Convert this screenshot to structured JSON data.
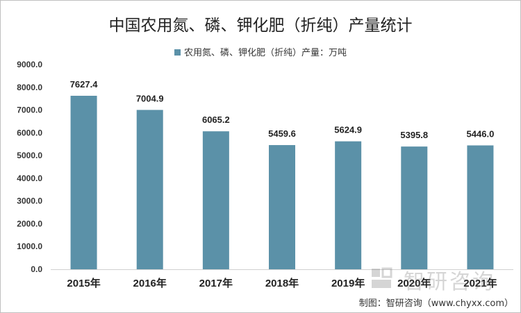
{
  "chart_data": {
    "type": "bar",
    "title": "中国农用氮、磷、钾化肥（折纯）产量统计",
    "categories": [
      "2015年",
      "2016年",
      "2017年",
      "2018年",
      "2019年",
      "2020年",
      "2021年"
    ],
    "series": [
      {
        "name": "农用氮、磷、钾化肥（折纯）产量：万吨",
        "values": [
          7627.4,
          7004.9,
          6065.2,
          5459.6,
          5624.9,
          5395.8,
          5446.0
        ],
        "labels": [
          "7627.4",
          "7004.9",
          "6065.2",
          "5459.6",
          "5624.9",
          "5395.8",
          "5446.0"
        ],
        "color": "#5b91a8"
      }
    ],
    "yticks": [
      "0.0",
      "1000.0",
      "2000.0",
      "3000.0",
      "4000.0",
      "5000.0",
      "6000.0",
      "7000.0",
      "8000.0",
      "9000.0"
    ],
    "ylim": [
      0,
      9000
    ],
    "grid": false,
    "legend": "top-center"
  },
  "watermark": {
    "text": "智研咨询",
    "color": "#6b6b6b"
  },
  "source": "制图：智研咨询（www.chyxx.com）"
}
